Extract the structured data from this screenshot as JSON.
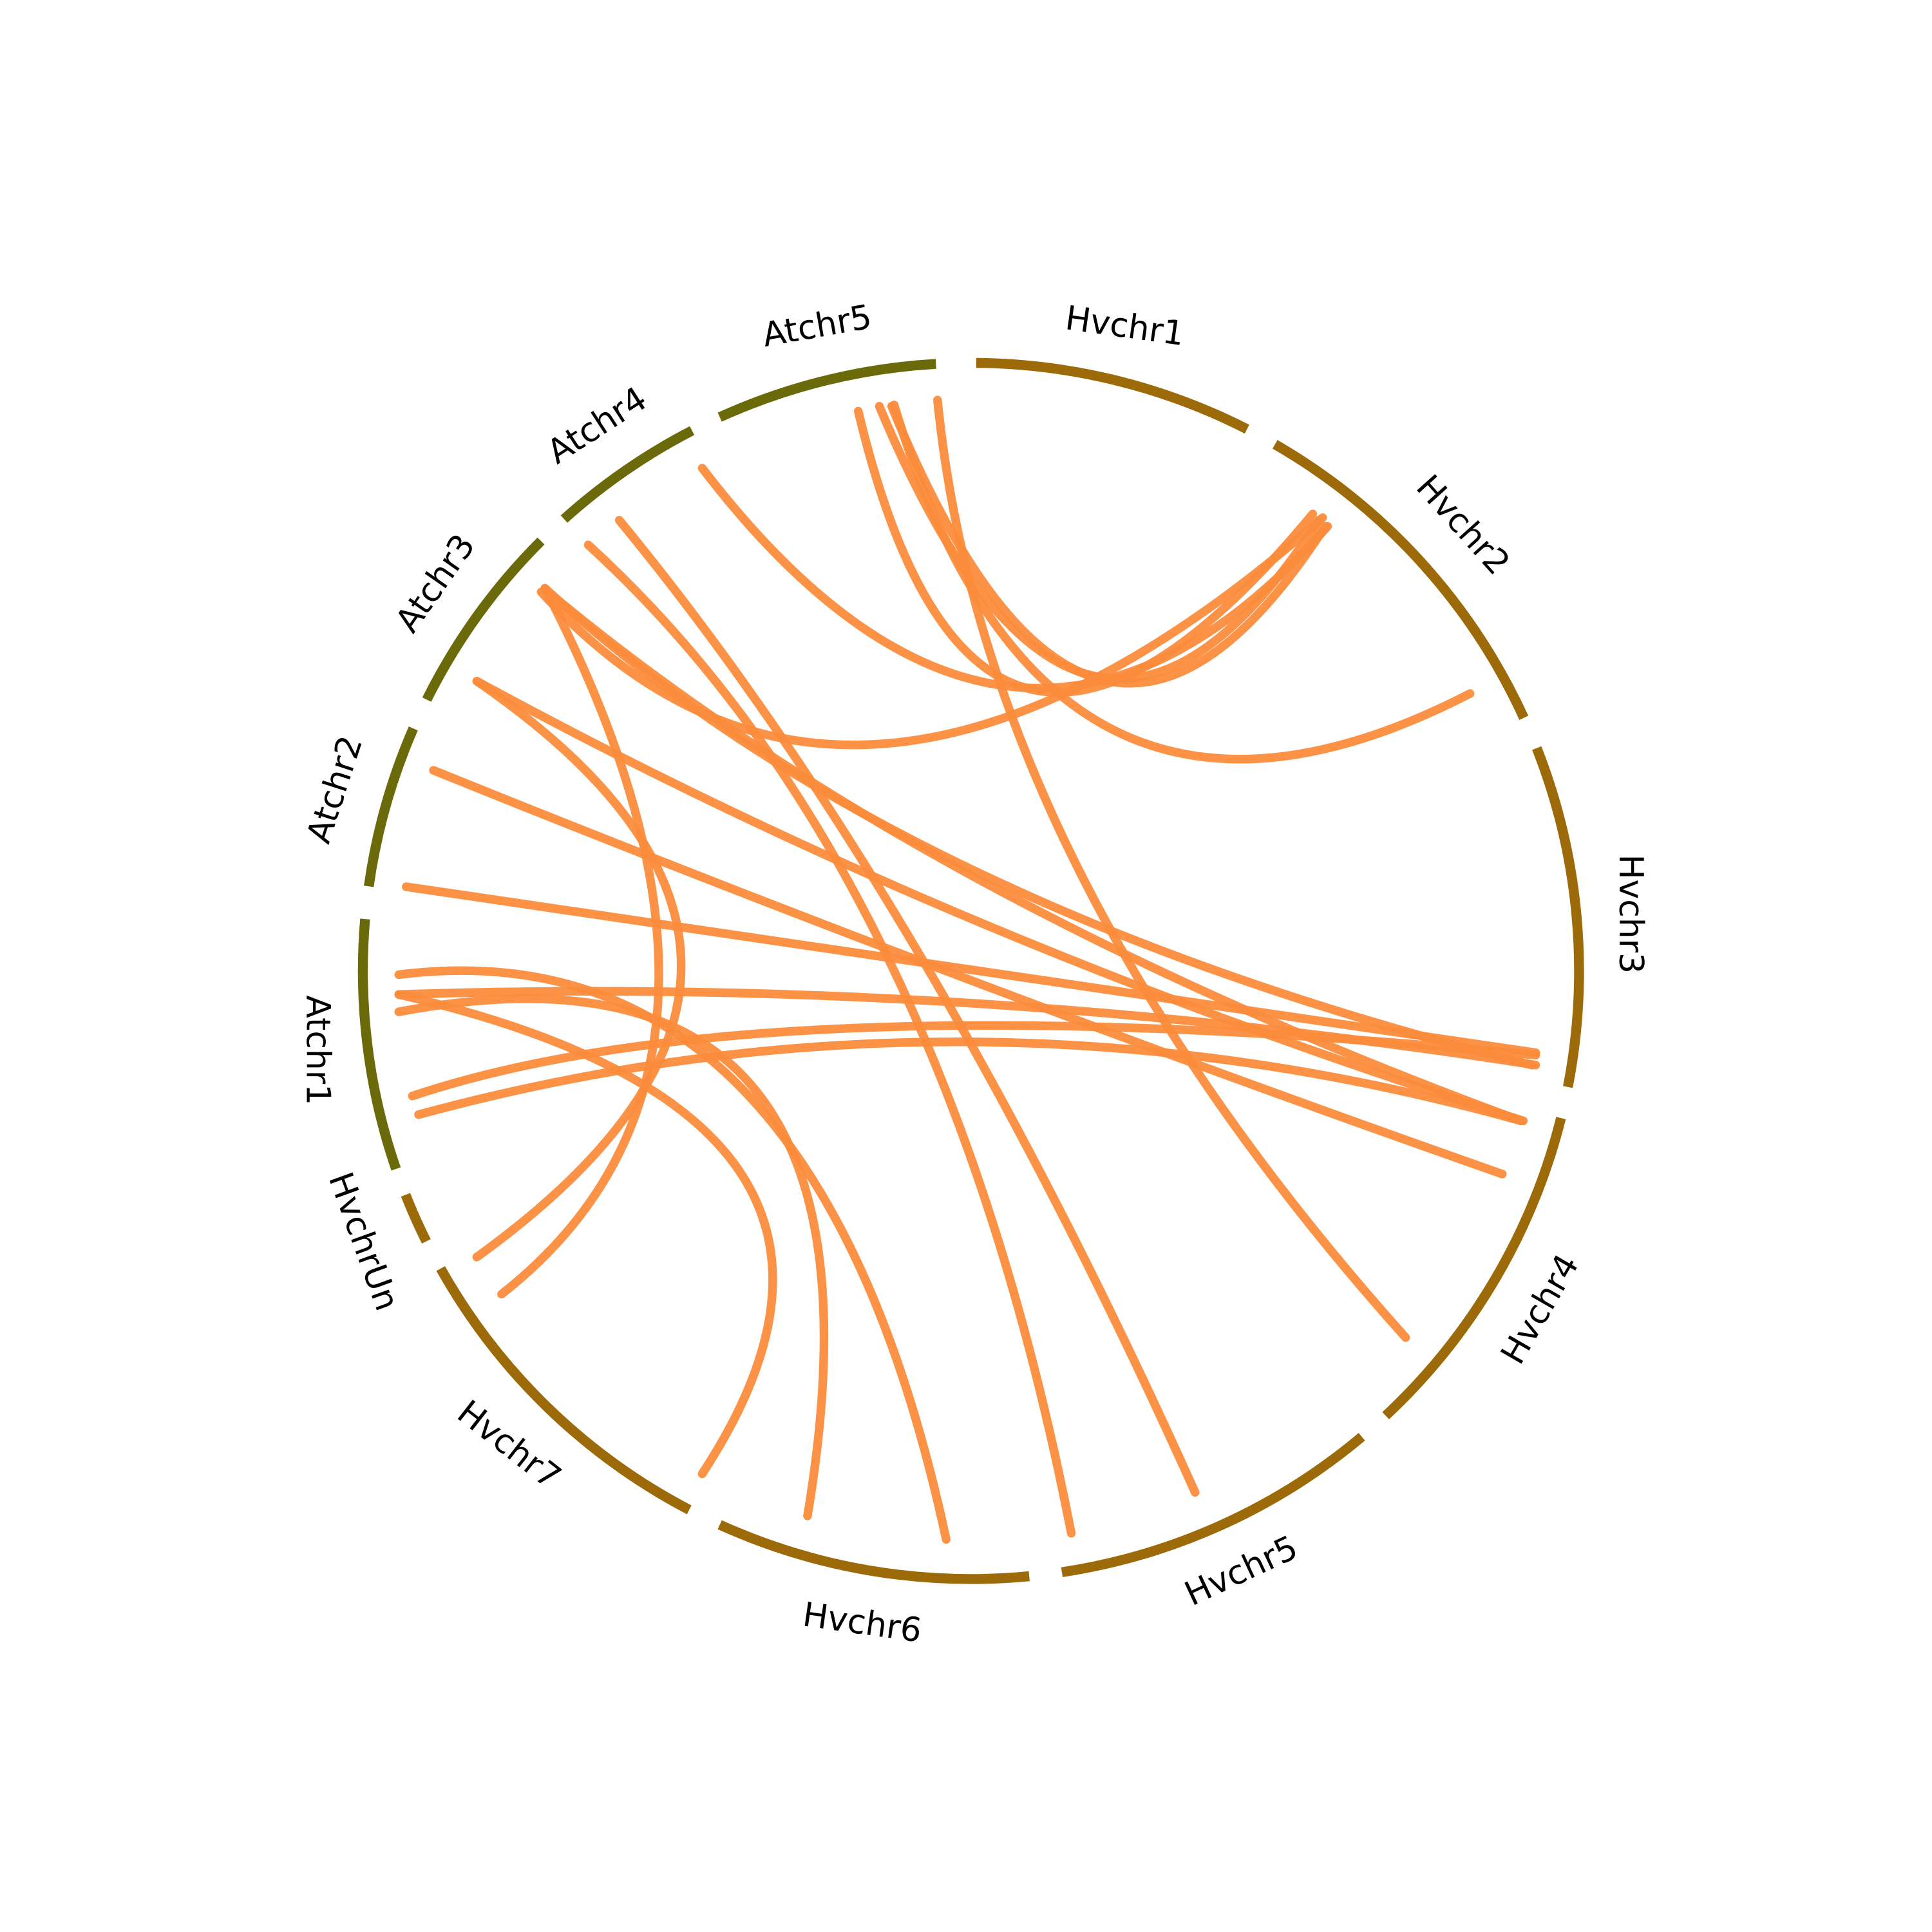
{
  "segments": [
    {
      "label": "Hvchr1"
    },
    {
      "label": "Hvchr2"
    },
    {
      "label": "Hvchr3"
    },
    {
      "label": "Hvchr4"
    },
    {
      "label": "Hvchr5"
    },
    {
      "label": "Hvchr6"
    },
    {
      "label": "Hvchr7"
    },
    {
      "label": "HvchrUn"
    },
    {
      "label": "Atchr1"
    },
    {
      "label": "Atchr2"
    },
    {
      "label": "Atchr3"
    },
    {
      "label": "Atchr4"
    },
    {
      "label": "Atchr5"
    }
  ]
}
